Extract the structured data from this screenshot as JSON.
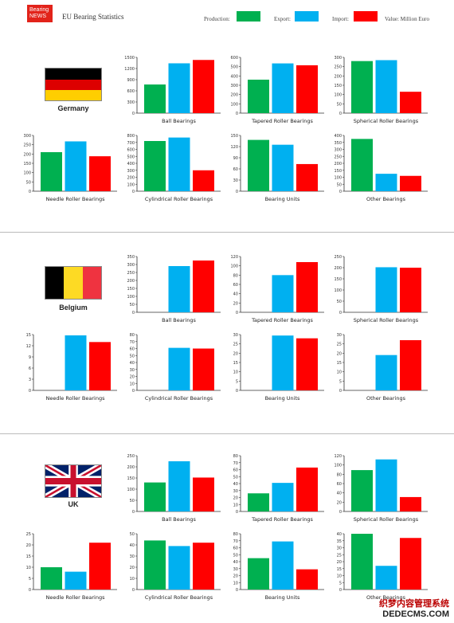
{
  "header": {
    "logo_line1": "Bearing",
    "logo_line2": "NEWS",
    "title": "EU Bearing Statistics"
  },
  "legend": {
    "production": "Production:",
    "export": "Export:",
    "import": "Import:",
    "value_note": "Value: Million Euro"
  },
  "colors": {
    "production": "#00b050",
    "export": "#00b0f0",
    "import": "#ff0000"
  },
  "watermark": {
    "line1": "织梦内容管理系统",
    "line2": "DEDECMS.COM"
  },
  "countries": [
    {
      "name": "Germany",
      "flag": "germany-flag"
    },
    {
      "name": "Belgium",
      "flag": "belgium-flag"
    },
    {
      "name": "UK",
      "flag": "uk-flag"
    }
  ],
  "chart_data": [
    {
      "type": "bar",
      "country": "Germany",
      "title": "Ball Bearings",
      "categories": [
        "Production",
        "Export",
        "Import"
      ],
      "values": [
        770,
        1340,
        1430
      ],
      "ylim": [
        0,
        1500
      ],
      "yticks": [
        0,
        300,
        600,
        900,
        1200,
        1500
      ]
    },
    {
      "type": "bar",
      "country": "Germany",
      "title": "Tapered Roller Bearings",
      "categories": [
        "Production",
        "Export",
        "Import"
      ],
      "values": [
        360,
        535,
        515
      ],
      "ylim": [
        0,
        600
      ],
      "yticks": [
        0,
        100,
        200,
        300,
        400,
        500,
        600
      ]
    },
    {
      "type": "bar",
      "country": "Germany",
      "title": "Spherical Roller Bearings",
      "categories": [
        "Production",
        "Export",
        "Import"
      ],
      "values": [
        280,
        285,
        115
      ],
      "ylim": [
        0,
        300
      ],
      "yticks": [
        0,
        50,
        100,
        150,
        200,
        250,
        300
      ]
    },
    {
      "type": "bar",
      "country": "Germany",
      "title": "Needle Roller Bearings",
      "categories": [
        "Production",
        "Export",
        "Import"
      ],
      "values": [
        210,
        268,
        188
      ],
      "ylim": [
        0,
        300
      ],
      "yticks": [
        0,
        50,
        100,
        150,
        200,
        250,
        300
      ]
    },
    {
      "type": "bar",
      "country": "Germany",
      "title": "Cylindrical Roller Bearings",
      "categories": [
        "Production",
        "Export",
        "Import"
      ],
      "values": [
        720,
        770,
        300
      ],
      "ylim": [
        0,
        800
      ],
      "yticks": [
        0,
        100,
        200,
        300,
        400,
        500,
        600,
        700,
        800
      ]
    },
    {
      "type": "bar",
      "country": "Germany",
      "title": "Bearing Units",
      "categories": [
        "Production",
        "Export",
        "Import"
      ],
      "values": [
        138,
        125,
        73
      ],
      "ylim": [
        0,
        150
      ],
      "yticks": [
        0,
        30,
        60,
        90,
        120,
        150
      ]
    },
    {
      "type": "bar",
      "country": "Germany",
      "title": "Other Bearings",
      "categories": [
        "Production",
        "Export",
        "Import"
      ],
      "values": [
        375,
        125,
        110
      ],
      "ylim": [
        0,
        400
      ],
      "yticks": [
        0,
        50,
        100,
        150,
        200,
        250,
        300,
        350,
        400
      ]
    },
    {
      "type": "bar",
      "country": "Belgium",
      "title": "Ball Bearings",
      "categories": [
        "Production",
        "Export",
        "Import"
      ],
      "values": [
        0,
        290,
        325
      ],
      "ylim": [
        0,
        350
      ],
      "yticks": [
        0,
        50,
        100,
        150,
        200,
        250,
        300,
        350
      ]
    },
    {
      "type": "bar",
      "country": "Belgium",
      "title": "Tapered Roller Bearings",
      "categories": [
        "Production",
        "Export",
        "Import"
      ],
      "values": [
        0,
        80,
        108
      ],
      "ylim": [
        0,
        120
      ],
      "yticks": [
        0,
        20,
        40,
        60,
        80,
        100,
        120
      ]
    },
    {
      "type": "bar",
      "country": "Belgium",
      "title": "Spherical Roller Bearings",
      "categories": [
        "Production",
        "Export",
        "Import"
      ],
      "values": [
        0,
        202,
        200
      ],
      "ylim": [
        0,
        250
      ],
      "yticks": [
        0,
        50,
        100,
        150,
        200,
        250
      ]
    },
    {
      "type": "bar",
      "country": "Belgium",
      "title": "Needle Roller Bearings",
      "categories": [
        "Production",
        "Export",
        "Import"
      ],
      "values": [
        0,
        14.8,
        13
      ],
      "ylim": [
        0,
        15
      ],
      "yticks": [
        0,
        3,
        6,
        9,
        12,
        15
      ]
    },
    {
      "type": "bar",
      "country": "Belgium",
      "title": "Cylindrical Roller Bearings",
      "categories": [
        "Production",
        "Export",
        "Import"
      ],
      "values": [
        0,
        61,
        60
      ],
      "ylim": [
        0,
        80
      ],
      "yticks": [
        0,
        10,
        20,
        30,
        40,
        50,
        60,
        70,
        80
      ]
    },
    {
      "type": "bar",
      "country": "Belgium",
      "title": "Bearing Units",
      "categories": [
        "Production",
        "Export",
        "Import"
      ],
      "values": [
        0,
        29.5,
        28
      ],
      "ylim": [
        0,
        30
      ],
      "yticks": [
        0,
        5,
        10,
        15,
        20,
        25,
        30
      ]
    },
    {
      "type": "bar",
      "country": "Belgium",
      "title": "Other Bearings",
      "categories": [
        "Production",
        "Export",
        "Import"
      ],
      "values": [
        0,
        19,
        27
      ],
      "ylim": [
        0,
        30
      ],
      "yticks": [
        0,
        5,
        10,
        15,
        20,
        25,
        30
      ]
    },
    {
      "type": "bar",
      "country": "UK",
      "title": "Ball Bearings",
      "categories": [
        "Production",
        "Export",
        "Import"
      ],
      "values": [
        130,
        225,
        152
      ],
      "ylim": [
        0,
        250
      ],
      "yticks": [
        0,
        50,
        100,
        150,
        200,
        250
      ]
    },
    {
      "type": "bar",
      "country": "UK",
      "title": "Tapered Roller Bearings",
      "categories": [
        "Production",
        "Export",
        "Import"
      ],
      "values": [
        26,
        41,
        63
      ],
      "ylim": [
        0,
        80
      ],
      "yticks": [
        0,
        10,
        20,
        30,
        40,
        50,
        60,
        70,
        80
      ]
    },
    {
      "type": "bar",
      "country": "UK",
      "title": "Spherical Roller Bearings",
      "categories": [
        "Production",
        "Export",
        "Import"
      ],
      "values": [
        89,
        112,
        31
      ],
      "ylim": [
        0,
        120
      ],
      "yticks": [
        0,
        20,
        40,
        60,
        80,
        100,
        120
      ]
    },
    {
      "type": "bar",
      "country": "UK",
      "title": "Needle Roller Bearings",
      "categories": [
        "Production",
        "Export",
        "Import"
      ],
      "values": [
        10,
        8,
        21
      ],
      "ylim": [
        0,
        25
      ],
      "yticks": [
        0,
        5,
        10,
        15,
        20,
        25
      ]
    },
    {
      "type": "bar",
      "country": "UK",
      "title": "Cylindrical Roller Bearings",
      "categories": [
        "Production",
        "Export",
        "Import"
      ],
      "values": [
        44,
        39,
        42
      ],
      "ylim": [
        0,
        50
      ],
      "yticks": [
        0,
        10,
        20,
        30,
        40,
        50
      ]
    },
    {
      "type": "bar",
      "country": "UK",
      "title": "Bearing Units",
      "categories": [
        "Production",
        "Export",
        "Import"
      ],
      "values": [
        45,
        69,
        29
      ],
      "ylim": [
        0,
        80
      ],
      "yticks": [
        0,
        10,
        20,
        30,
        40,
        50,
        60,
        70,
        80
      ]
    },
    {
      "type": "bar",
      "country": "UK",
      "title": "Other Bearings",
      "categories": [
        "Production",
        "Export",
        "Import"
      ],
      "values": [
        40,
        17,
        37
      ],
      "ylim": [
        0,
        40
      ],
      "yticks": [
        0,
        5,
        10,
        15,
        20,
        25,
        30,
        35,
        40
      ]
    }
  ]
}
